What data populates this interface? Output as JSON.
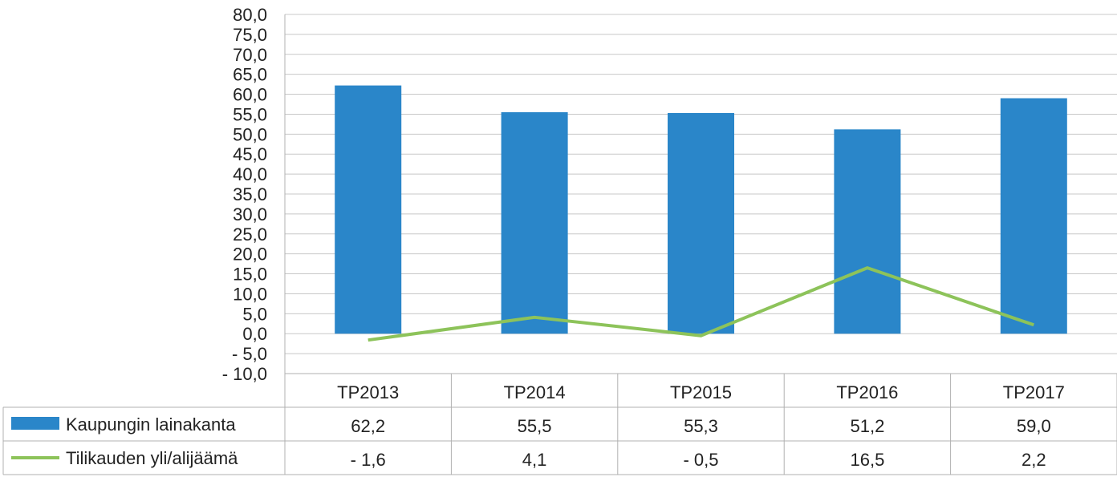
{
  "chart_data": {
    "type": "bar",
    "categories": [
      "TP2013",
      "TP2014",
      "TP2015",
      "TP2016",
      "TP2017"
    ],
    "ylim": [
      -10,
      80
    ],
    "ystep": 5,
    "ytick_labels": [
      "- 10,0",
      "- 5,0",
      "0,0",
      "5,0",
      "10,0",
      "15,0",
      "20,0",
      "25,0",
      "30,0",
      "35,0",
      "40,0",
      "45,0",
      "50,0",
      "55,0",
      "60,0",
      "65,0",
      "70,0",
      "75,0",
      "80,0"
    ],
    "grid": true,
    "legend": "data-table-left",
    "series": [
      {
        "name": "Kaupungin lainakanta",
        "kind": "bar",
        "color": "#2a86c9",
        "values": [
          62.2,
          55.5,
          55.3,
          51.2,
          59.0
        ],
        "labels": [
          "62,2",
          "55,5",
          "55,3",
          "51,2",
          "59,0"
        ]
      },
      {
        "name": "Tilikauden yli/alijäämä",
        "kind": "line",
        "color": "#8dc35a",
        "values": [
          -1.6,
          4.1,
          -0.5,
          16.5,
          2.2
        ],
        "labels": [
          "- 1,6",
          "4,1",
          "- 0,5",
          "16,5",
          "2,2"
        ]
      }
    ]
  }
}
